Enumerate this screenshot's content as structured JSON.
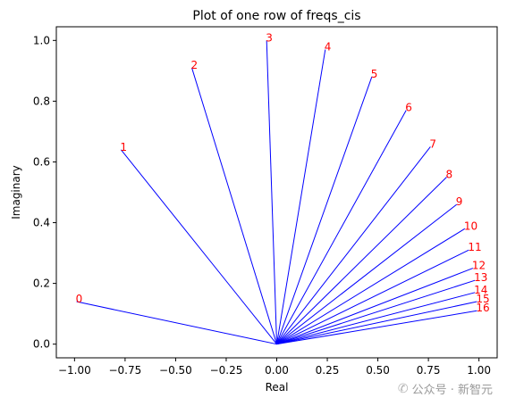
{
  "chart_data": {
    "type": "line",
    "title": "Plot of one row of freqs_cis",
    "xlabel": "Real",
    "ylabel": "Imaginary",
    "xlim": [
      -1.09,
      1.09
    ],
    "ylim": [
      -0.045,
      1.045
    ],
    "xticks": [
      -1.0,
      -0.75,
      -0.5,
      -0.25,
      0.0,
      0.25,
      0.5,
      0.75,
      1.0
    ],
    "xtick_labels": [
      "−1.00",
      "−0.75",
      "−0.50",
      "−0.25",
      "0.00",
      "0.25",
      "0.50",
      "0.75",
      "1.00"
    ],
    "yticks": [
      0.0,
      0.2,
      0.4,
      0.6,
      0.8,
      1.0
    ],
    "ytick_labels": [
      "0.0",
      "0.2",
      "0.4",
      "0.6",
      "0.8",
      "1.0"
    ],
    "line_color": "#0000ff",
    "label_color": "#ff0000",
    "origin": [
      0,
      0
    ],
    "vectors": [
      {
        "label": "0",
        "x": -0.99,
        "y": 0.14
      },
      {
        "label": "1",
        "x": -0.77,
        "y": 0.64
      },
      {
        "label": "2",
        "x": -0.42,
        "y": 0.91
      },
      {
        "label": "3",
        "x": -0.05,
        "y": 1.0
      },
      {
        "label": "4",
        "x": 0.24,
        "y": 0.97
      },
      {
        "label": "5",
        "x": 0.47,
        "y": 0.88
      },
      {
        "label": "6",
        "x": 0.64,
        "y": 0.77
      },
      {
        "label": "7",
        "x": 0.76,
        "y": 0.65
      },
      {
        "label": "8",
        "x": 0.84,
        "y": 0.55
      },
      {
        "label": "9",
        "x": 0.89,
        "y": 0.46
      },
      {
        "label": "10",
        "x": 0.93,
        "y": 0.38
      },
      {
        "label": "11",
        "x": 0.95,
        "y": 0.31
      },
      {
        "label": "12",
        "x": 0.97,
        "y": 0.25
      },
      {
        "label": "13",
        "x": 0.98,
        "y": 0.21
      },
      {
        "label": "14",
        "x": 0.98,
        "y": 0.17
      },
      {
        "label": "15",
        "x": 0.99,
        "y": 0.14
      },
      {
        "label": "16",
        "x": 0.99,
        "y": 0.11
      }
    ]
  },
  "watermark": {
    "icon": "wechat-icon",
    "text": "公众号 · 新智元"
  }
}
